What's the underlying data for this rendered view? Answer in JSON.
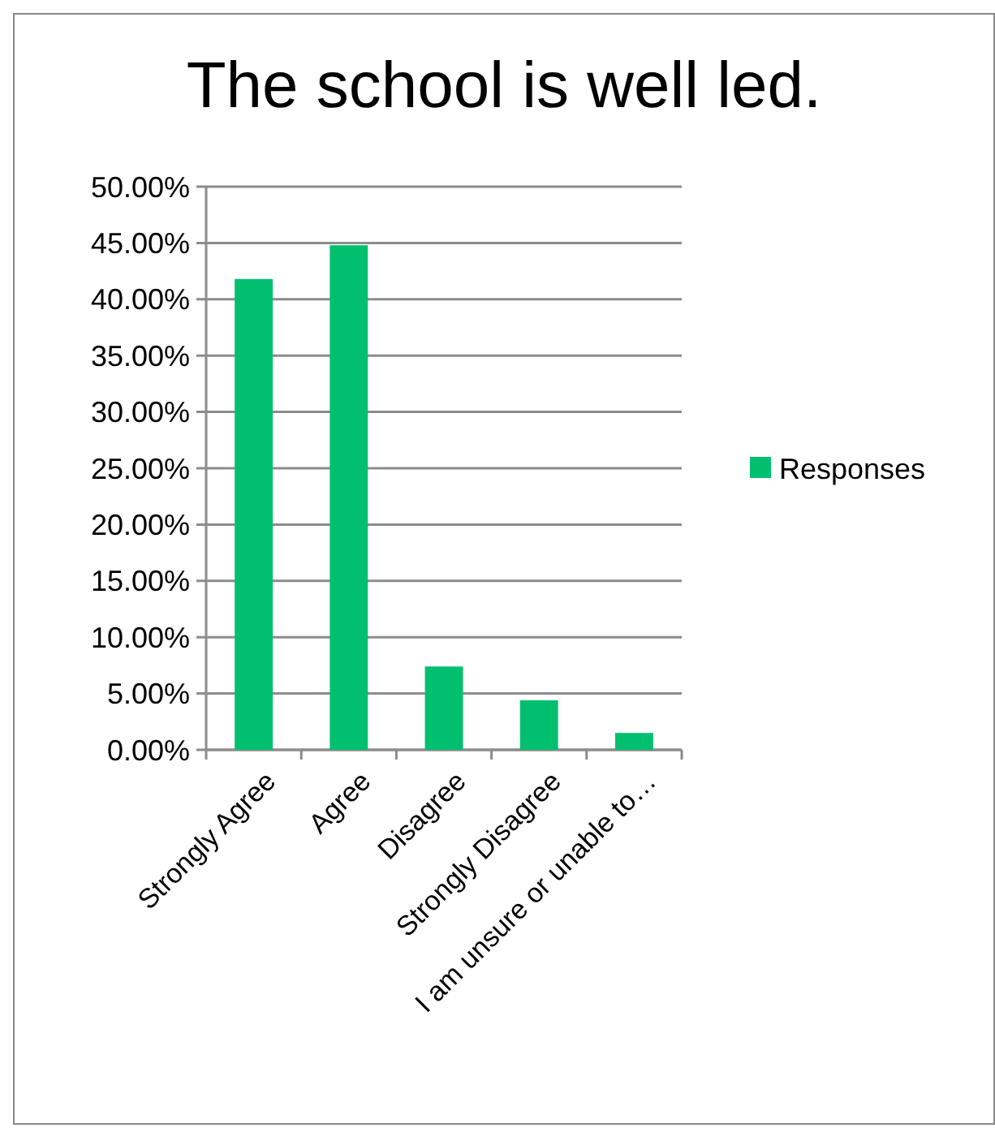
{
  "chart_data": {
    "type": "bar",
    "title": "The school is well led.",
    "categories": [
      "Strongly Agree",
      "Agree",
      "Disagree",
      "Strongly Disagree",
      "I am unsure or unable to…"
    ],
    "series": [
      {
        "name": "Responses",
        "color": "#00c06f",
        "values": [
          41.8,
          44.8,
          7.4,
          4.4,
          1.5
        ]
      }
    ],
    "ylim": [
      0,
      50
    ],
    "yticks": [
      {
        "value": 0,
        "label": "0.00%"
      },
      {
        "value": 5,
        "label": "5.00%"
      },
      {
        "value": 10,
        "label": "10.00%"
      },
      {
        "value": 15,
        "label": "15.00%"
      },
      {
        "value": 20,
        "label": "20.00%"
      },
      {
        "value": 25,
        "label": "25.00%"
      },
      {
        "value": 30,
        "label": "30.00%"
      },
      {
        "value": 35,
        "label": "35.00%"
      },
      {
        "value": 40,
        "label": "40.00%"
      },
      {
        "value": 45,
        "label": "45.00%"
      },
      {
        "value": 50,
        "label": "50.00%"
      }
    ],
    "grid": "y",
    "legend": "right"
  }
}
